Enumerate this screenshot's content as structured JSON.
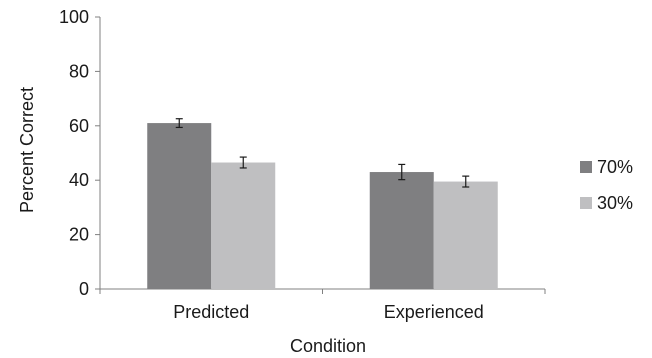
{
  "chart_data": {
    "type": "bar",
    "title": "",
    "xlabel": "Condition",
    "ylabel": "Percent Correct",
    "ylim": [
      0,
      100
    ],
    "yticks": [
      0,
      20,
      40,
      60,
      80,
      100
    ],
    "grid": false,
    "legend_position": "right",
    "categories": [
      "Predicted",
      "Experienced"
    ],
    "series": [
      {
        "name": "70%",
        "color": "#7f7f81",
        "values": [
          61,
          43
        ],
        "errors": [
          1.6,
          2.8
        ]
      },
      {
        "name": "30%",
        "color": "#bfbfc1",
        "values": [
          46.5,
          39.5
        ],
        "errors": [
          2.0,
          2.0
        ]
      }
    ]
  }
}
